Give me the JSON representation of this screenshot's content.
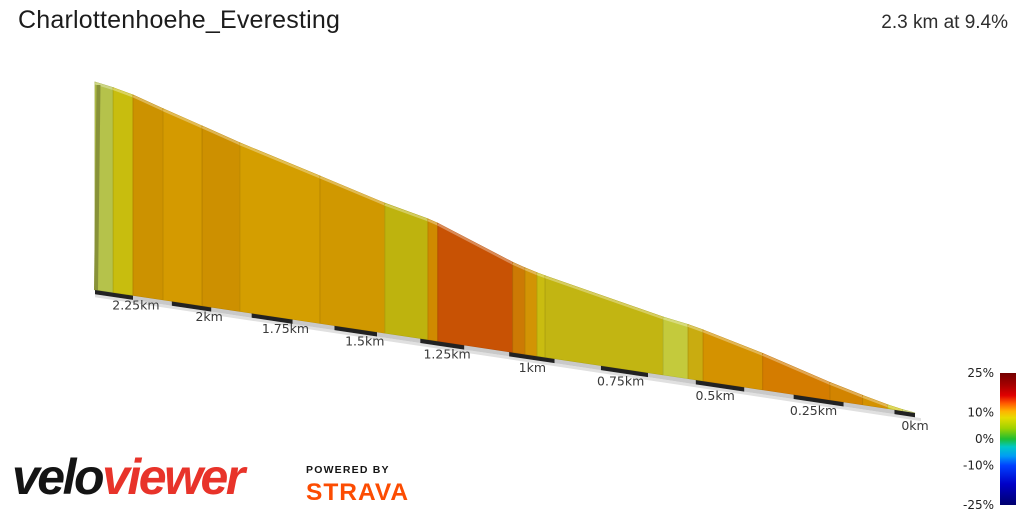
{
  "header": {
    "title": "Charlottenhoehe_Everesting",
    "summary": "2.3 km at 9.4%"
  },
  "chart_data": {
    "type": "area",
    "title": "Charlottenhoehe_Everesting",
    "subtitle": "2.3 km at 9.4%",
    "total_distance_km": 2.3,
    "average_gradient_pct": 9.4,
    "x_axis": {
      "unit": "km",
      "direction": "distance-decreases-left-to-right",
      "ticks": [
        {
          "km": 2.25,
          "label": "2.25km"
        },
        {
          "km": 2.0,
          "label": "2km"
        },
        {
          "km": 1.75,
          "label": "1.75km"
        },
        {
          "km": 1.5,
          "label": "1.5km"
        },
        {
          "km": 1.25,
          "label": "1.25km"
        },
        {
          "km": 1.0,
          "label": "1km"
        },
        {
          "km": 0.75,
          "label": "0.75km"
        },
        {
          "km": 0.5,
          "label": "0.5km"
        },
        {
          "km": 0.25,
          "label": "0.25km"
        },
        {
          "km": 0.0,
          "label": "0km"
        }
      ]
    },
    "gradient_bands": [
      {
        "from_km": 2.3,
        "to_km": 2.24,
        "gradient_pct": 6,
        "color": "#b5c24b"
      },
      {
        "from_km": 2.24,
        "to_km": 2.175,
        "gradient_pct": 8,
        "color": "#c8bd0e"
      },
      {
        "from_km": 2.175,
        "to_km": 2.078,
        "gradient_pct": 11.5,
        "color": "#cc9200"
      },
      {
        "from_km": 2.078,
        "to_km": 1.954,
        "gradient_pct": 11,
        "color": "#d49a00"
      },
      {
        "from_km": 1.954,
        "to_km": 1.836,
        "gradient_pct": 11.5,
        "color": "#cd9000"
      },
      {
        "from_km": 1.836,
        "to_km": 1.593,
        "gradient_pct": 10.5,
        "color": "#d49e00"
      },
      {
        "from_km": 1.593,
        "to_km": 1.402,
        "gradient_pct": 11,
        "color": "#d09800"
      },
      {
        "from_km": 1.402,
        "to_km": 1.278,
        "gradient_pct": 9,
        "color": "#beb30e"
      },
      {
        "from_km": 1.278,
        "to_km": 1.25,
        "gradient_pct": 12,
        "color": "#d08a00"
      },
      {
        "from_km": 1.25,
        "to_km": 1.04,
        "gradient_pct": 16,
        "color": "#c85204"
      },
      {
        "from_km": 1.04,
        "to_km": 1.006,
        "gradient_pct": 13,
        "color": "#cc7a04"
      },
      {
        "from_km": 1.006,
        "to_km": 0.973,
        "gradient_pct": 11.5,
        "color": "#d29404"
      },
      {
        "from_km": 0.973,
        "to_km": 0.951,
        "gradient_pct": 9.5,
        "color": "#c9bc10"
      },
      {
        "from_km": 0.951,
        "to_km": 0.635,
        "gradient_pct": 9,
        "color": "#c2b512"
      },
      {
        "from_km": 0.635,
        "to_km": 0.57,
        "gradient_pct": 7,
        "color": "#c4ca3c"
      },
      {
        "from_km": 0.57,
        "to_km": 0.531,
        "gradient_pct": 9.5,
        "color": "#c9ac10"
      },
      {
        "from_km": 0.531,
        "to_km": 0.378,
        "gradient_pct": 11.5,
        "color": "#d49200"
      },
      {
        "from_km": 0.378,
        "to_km": 0.209,
        "gradient_pct": 13.5,
        "color": "#d47c00"
      },
      {
        "from_km": 0.209,
        "to_km": 0.128,
        "gradient_pct": 12,
        "color": "#d28400"
      },
      {
        "from_km": 0.128,
        "to_km": 0.066,
        "gradient_pct": 11,
        "color": "#d49200"
      },
      {
        "from_km": 0.066,
        "to_km": 0.03,
        "gradient_pct": 8.5,
        "color": "#cdc40e"
      },
      {
        "from_km": 0.03,
        "to_km": 0.0,
        "gradient_pct": 6,
        "color": "#bcc74c"
      }
    ],
    "legend": {
      "min_pct": -25,
      "max_pct": 25,
      "labels": [
        {
          "label": "25%",
          "value": 25
        },
        {
          "label": "10%",
          "value": 10
        },
        {
          "label": "0%",
          "value": 0
        },
        {
          "label": "-10%",
          "value": -10
        },
        {
          "label": "-25%",
          "value": -25
        }
      ],
      "colormap": [
        {
          "pos": 0,
          "color": "#730000"
        },
        {
          "pos": 0.09,
          "color": "#a50000"
        },
        {
          "pos": 0.17,
          "color": "#e00000"
        },
        {
          "pos": 0.23,
          "color": "#ff5a00"
        },
        {
          "pos": 0.29,
          "color": "#ffb400"
        },
        {
          "pos": 0.34,
          "color": "#e6dc00"
        },
        {
          "pos": 0.42,
          "color": "#9ed200"
        },
        {
          "pos": 0.5,
          "color": "#1fbe32"
        },
        {
          "pos": 0.56,
          "color": "#00c8c8"
        },
        {
          "pos": 0.63,
          "color": "#009cf5"
        },
        {
          "pos": 0.7,
          "color": "#0041ff"
        },
        {
          "pos": 0.84,
          "color": "#0000c8"
        },
        {
          "pos": 1,
          "color": "#00006e"
        }
      ]
    }
  },
  "footer": {
    "brand_black": "velo",
    "brand_red": "viewer",
    "powered_by": "POWERED BY",
    "strava": "STRAVA"
  },
  "theme": {
    "title_color": "#1c1c1c",
    "summary_color": "#2e2e2e",
    "tick_color": "#3a3a3a",
    "legend_label_color": "#222222",
    "axis_dark": "#222222",
    "axis_light": "#c9c9c9",
    "axis_front": "#e0e0e0",
    "brand_black_color": "#141414",
    "brand_red_color": "#e8332a",
    "strava_orange": "#fc4c02"
  }
}
